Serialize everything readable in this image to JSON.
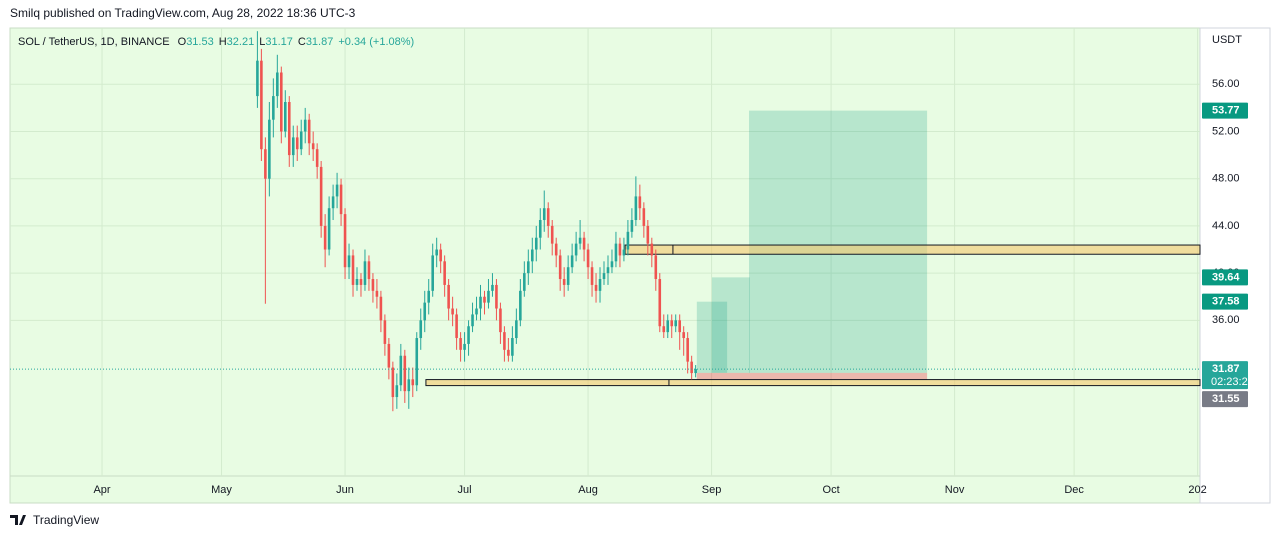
{
  "header": "Smilq published on TradingView.com, Aug 28, 2022 18:36 UTC-3",
  "footer": "TradingView",
  "chart_data": {
    "type": "candlestick",
    "symbol": "SOL / TetherUS, 1D, BINANCE",
    "legend_labels": [
      "O",
      "H",
      "L",
      "C"
    ],
    "change": "+0.34 (+1.08%)",
    "currency": "USDT",
    "countdown": "02:23:28",
    "up_color": "#26a69a",
    "down_color": "#ef5350",
    "grid": true,
    "open": [
      55.0,
      58.0,
      50.5,
      48.0,
      53.0,
      55.0,
      57.0,
      52.0,
      54.5,
      50.0,
      51.5,
      50.5,
      52.0,
      53.0,
      51.0,
      50.5,
      49.0,
      44.0,
      42.0,
      45.5,
      46.5,
      47.5,
      45.0,
      40.5,
      41.5,
      39.0,
      39.5,
      39.0,
      41.0,
      39.5,
      38.5,
      38.0,
      36.0,
      34.0,
      32.0,
      29.5,
      30.5,
      33.0,
      30.0,
      31.0,
      30.5,
      34.5,
      36.0,
      37.5,
      38.5,
      41.5,
      42.0,
      41.0,
      39.0,
      37.0,
      36.5,
      34.5,
      33.5,
      34.0,
      35.5,
      36.5,
      37.0,
      38.0,
      37.5,
      38.5,
      39.0,
      37.0,
      35.0,
      33.5,
      33.0,
      34.5,
      36.0,
      38.5,
      40.0,
      41.0,
      42.0,
      43.0,
      44.5,
      45.5,
      44.0,
      42.5,
      41.5,
      39.5,
      39.0,
      40.5,
      41.5,
      42.5,
      43.0,
      42.0,
      40.5,
      39.0,
      38.5,
      39.5,
      40.0,
      40.5,
      41.0,
      42.5,
      41.5,
      42.0,
      43.5,
      44.5,
      46.5,
      45.5,
      44.0,
      42.5,
      41.5,
      39.5,
      35.5,
      35.0,
      36.0,
      35.5,
      36.0,
      35.0,
      34.5,
      32.5,
      31.53
    ],
    "high": [
      60.5,
      59.0,
      51.5,
      54.5,
      56.5,
      58.5,
      57.5,
      55.5,
      55.0,
      52.5,
      52.5,
      53.0,
      54.0,
      53.5,
      52.0,
      51.0,
      49.5,
      45.0,
      46.5,
      47.5,
      48.5,
      48.0,
      45.5,
      42.5,
      42.0,
      40.5,
      40.0,
      42.0,
      41.5,
      40.0,
      39.5,
      38.5,
      36.5,
      34.5,
      32.5,
      31.5,
      34.0,
      33.5,
      32.0,
      32.0,
      35.0,
      37.0,
      38.5,
      39.5,
      42.5,
      43.0,
      42.5,
      41.5,
      39.5,
      38.0,
      37.0,
      35.0,
      35.0,
      36.0,
      37.5,
      38.0,
      39.0,
      38.5,
      39.5,
      40.0,
      39.5,
      37.5,
      35.5,
      34.5,
      35.5,
      37.0,
      39.5,
      41.0,
      42.0,
      43.0,
      44.0,
      45.5,
      47.0,
      46.0,
      44.5,
      43.0,
      42.0,
      40.5,
      41.5,
      42.5,
      43.5,
      44.5,
      43.5,
      42.5,
      41.0,
      40.0,
      40.5,
      41.0,
      41.5,
      42.0,
      43.5,
      43.0,
      43.0,
      44.5,
      45.5,
      48.2,
      47.5,
      46.0,
      44.5,
      43.0,
      42.0,
      40.0,
      36.5,
      36.5,
      36.5,
      36.5,
      36.5,
      35.5,
      35.0,
      33.0,
      32.21
    ],
    "low": [
      54.0,
      49.5,
      37.4,
      46.5,
      51.5,
      54.0,
      51.0,
      51.5,
      49.0,
      49.0,
      49.5,
      50.0,
      51.0,
      50.0,
      49.5,
      48.0,
      43.0,
      40.5,
      41.5,
      44.5,
      45.5,
      44.0,
      39.5,
      39.5,
      38.0,
      38.5,
      38.0,
      38.5,
      38.5,
      37.5,
      37.0,
      35.0,
      33.0,
      31.0,
      28.3,
      28.5,
      30.0,
      29.0,
      28.5,
      29.5,
      30.0,
      33.5,
      35.0,
      36.5,
      38.0,
      40.5,
      40.0,
      38.0,
      36.0,
      35.5,
      33.5,
      32.5,
      32.5,
      33.0,
      35.0,
      36.0,
      36.0,
      36.5,
      37.0,
      38.0,
      36.0,
      34.0,
      32.5,
      32.5,
      32.5,
      34.0,
      35.5,
      38.0,
      39.0,
      40.0,
      41.0,
      42.0,
      43.5,
      43.0,
      41.5,
      40.5,
      38.5,
      38.0,
      38.5,
      40.0,
      41.0,
      42.0,
      41.0,
      39.5,
      38.0,
      37.5,
      37.5,
      39.0,
      39.0,
      40.0,
      40.5,
      40.5,
      41.0,
      41.5,
      43.0,
      44.0,
      44.5,
      43.0,
      41.5,
      40.5,
      38.5,
      35.0,
      34.5,
      34.5,
      34.5,
      35.0,
      33.5,
      33.0,
      31.5,
      31.0,
      31.17
    ],
    "close": [
      58.0,
      50.5,
      48.0,
      53.0,
      55.0,
      57.0,
      52.0,
      54.5,
      50.0,
      51.5,
      50.5,
      52.0,
      53.0,
      51.0,
      50.5,
      49.0,
      44.0,
      42.0,
      45.5,
      46.5,
      47.5,
      45.0,
      40.5,
      41.5,
      39.0,
      39.5,
      39.0,
      41.0,
      39.5,
      38.5,
      38.0,
      36.0,
      34.0,
      32.0,
      29.5,
      30.5,
      33.0,
      30.0,
      31.0,
      30.5,
      34.5,
      36.0,
      37.5,
      38.5,
      41.5,
      42.0,
      41.0,
      39.0,
      37.0,
      36.5,
      34.5,
      33.5,
      34.0,
      35.5,
      36.5,
      37.0,
      38.0,
      37.5,
      38.5,
      39.0,
      37.0,
      35.0,
      33.5,
      33.0,
      34.5,
      36.0,
      38.5,
      40.0,
      41.0,
      42.0,
      43.0,
      44.5,
      45.5,
      44.0,
      42.5,
      41.5,
      39.5,
      39.0,
      40.5,
      41.5,
      42.5,
      43.0,
      42.0,
      40.5,
      39.0,
      38.5,
      39.5,
      40.0,
      40.5,
      41.0,
      42.5,
      41.5,
      42.0,
      43.5,
      44.5,
      46.5,
      45.5,
      44.0,
      42.5,
      41.5,
      39.5,
      35.5,
      35.0,
      36.0,
      35.5,
      36.0,
      35.0,
      34.5,
      32.5,
      31.53,
      31.87
    ],
    "xlim": [
      -62.1,
      236.6
    ],
    "xticks": [
      {
        "value": -39,
        "label": "Apr"
      },
      {
        "value": -9,
        "label": "May"
      },
      {
        "value": 22,
        "label": "Jun"
      },
      {
        "value": 52,
        "label": "Jul"
      },
      {
        "value": 83,
        "label": "Aug"
      },
      {
        "value": 114,
        "label": "Sep"
      },
      {
        "value": 144,
        "label": "Oct"
      },
      {
        "value": 175,
        "label": "Nov"
      },
      {
        "value": 205,
        "label": "Dec"
      },
      {
        "value": 236,
        "label": "202"
      }
    ],
    "ylim": [
      22.81,
      60.77
    ],
    "yticks": [
      {
        "value": 56,
        "label": "56.00"
      },
      {
        "value": 52,
        "label": "52.00"
      },
      {
        "value": 48,
        "label": "48.00"
      },
      {
        "value": 44,
        "label": "44.00"
      },
      {
        "value": 40,
        "label": "40.00"
      },
      {
        "value": 36,
        "label": "36.00"
      }
    ],
    "price_labels": [
      {
        "value": 53.77,
        "color": "#089981",
        "box": [
          123.4,
          168.1
        ]
      },
      {
        "value": 39.64,
        "color": "#089981",
        "box": [
          114.1,
          123.6
        ]
      },
      {
        "value": 37.58,
        "color": "#089981",
        "box": [
          110.3,
          117.9
        ]
      },
      {
        "value": 31.55,
        "color": "#787b86"
      }
    ],
    "stop_zone": {
      "x0": 110.3,
      "x1": 168.1,
      "low": 30.98
    },
    "zones": [
      {
        "x0": 92.3,
        "split": 104.3,
        "low": 41.6,
        "high": 42.38
      },
      {
        "x0": 42.3,
        "split": 103.3,
        "low": 30.47,
        "high": 30.98
      }
    ]
  }
}
